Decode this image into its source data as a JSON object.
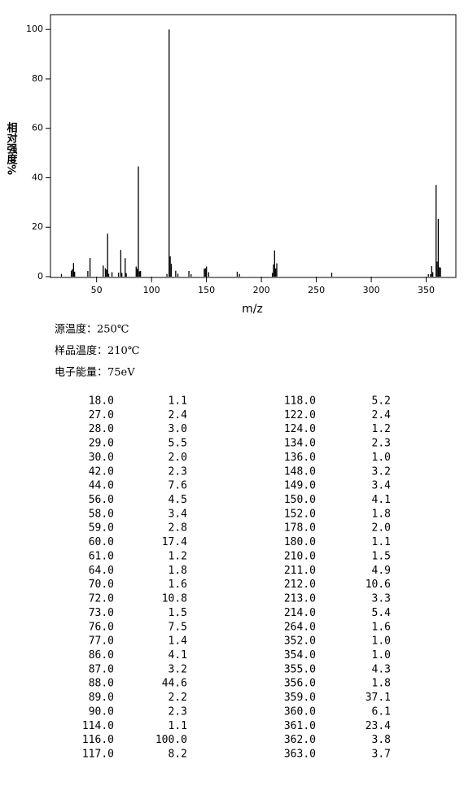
{
  "chart_data": {
    "type": "stick",
    "x_label": "m/z",
    "y_label": "相对强度%",
    "color": "#000000",
    "x": [
      18,
      27,
      28,
      29,
      30,
      42,
      44,
      56,
      58,
      59,
      60,
      61,
      64,
      70,
      72,
      73,
      76,
      77,
      86,
      87,
      88,
      89,
      90,
      114,
      116,
      117,
      118,
      122,
      124,
      134,
      136,
      148,
      149,
      150,
      152,
      178,
      180,
      210,
      211,
      212,
      213,
      214,
      264,
      352,
      354,
      355,
      356,
      359,
      360,
      361,
      362,
      363
    ],
    "values": [
      1.1,
      2.4,
      3.0,
      5.5,
      2.0,
      2.3,
      7.6,
      4.5,
      3.4,
      2.8,
      17.4,
      1.2,
      1.8,
      1.6,
      10.8,
      1.5,
      7.5,
      1.4,
      4.1,
      3.2,
      44.6,
      2.2,
      2.3,
      1.1,
      100.0,
      8.2,
      5.2,
      2.4,
      1.2,
      2.3,
      1.0,
      3.2,
      3.4,
      4.1,
      1.8,
      2.0,
      1.1,
      1.5,
      4.9,
      10.6,
      3.3,
      5.4,
      1.6,
      1.0,
      1.0,
      4.3,
      1.8,
      37.1,
      6.1,
      23.4,
      3.8,
      3.7
    ],
    "xlim": [
      8,
      377
    ],
    "xticks": [
      50,
      100,
      150,
      200,
      250,
      300,
      350
    ],
    "ylim": [
      0,
      106
    ],
    "yticks": [
      0,
      20,
      40,
      60,
      80,
      100
    ]
  },
  "conditions": [
    "源温度：250℃",
    "样品温度：210℃",
    "电子能量：75eV"
  ],
  "table": {
    "rows": [
      [
        "18.0",
        "1.1",
        "118.0",
        "5.2"
      ],
      [
        "27.0",
        "2.4",
        "122.0",
        "2.4"
      ],
      [
        "28.0",
        "3.0",
        "124.0",
        "1.2"
      ],
      [
        "29.0",
        "5.5",
        "134.0",
        "2.3"
      ],
      [
        "30.0",
        "2.0",
        "136.0",
        "1.0"
      ],
      [
        "42.0",
        "2.3",
        "148.0",
        "3.2"
      ],
      [
        "44.0",
        "7.6",
        "149.0",
        "3.4"
      ],
      [
        "56.0",
        "4.5",
        "150.0",
        "4.1"
      ],
      [
        "58.0",
        "3.4",
        "152.0",
        "1.8"
      ],
      [
        "59.0",
        "2.8",
        "178.0",
        "2.0"
      ],
      [
        "60.0",
        "17.4",
        "180.0",
        "1.1"
      ],
      [
        "61.0",
        "1.2",
        "210.0",
        "1.5"
      ],
      [
        "64.0",
        "1.8",
        "211.0",
        "4.9"
      ],
      [
        "70.0",
        "1.6",
        "212.0",
        "10.6"
      ],
      [
        "72.0",
        "10.8",
        "213.0",
        "3.3"
      ],
      [
        "73.0",
        "1.5",
        "214.0",
        "5.4"
      ],
      [
        "76.0",
        "7.5",
        "264.0",
        "1.6"
      ],
      [
        "77.0",
        "1.4",
        "352.0",
        "1.0"
      ],
      [
        "86.0",
        "4.1",
        "354.0",
        "1.0"
      ],
      [
        "87.0",
        "3.2",
        "355.0",
        "4.3"
      ],
      [
        "88.0",
        "44.6",
        "356.0",
        "1.8"
      ],
      [
        "89.0",
        "2.2",
        "359.0",
        "37.1"
      ],
      [
        "90.0",
        "2.3",
        "360.0",
        "6.1"
      ],
      [
        "114.0",
        "1.1",
        "361.0",
        "23.4"
      ],
      [
        "116.0",
        "100.0",
        "362.0",
        "3.8"
      ],
      [
        "117.0",
        "8.2",
        "363.0",
        "3.7"
      ]
    ]
  }
}
